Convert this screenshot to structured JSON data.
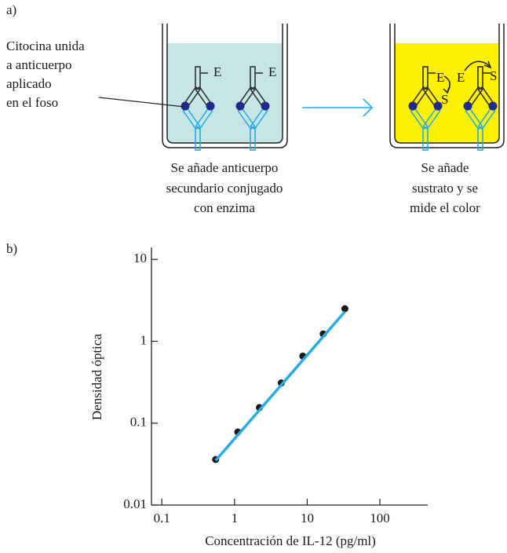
{
  "panel_labels": [
    "a)",
    "b)"
  ],
  "panel_a": {
    "callout": [
      "Citocina unida",
      "a anticuerpo",
      "aplicado",
      "en el foso"
    ],
    "enzyme": "E",
    "substrate": "S",
    "caption_left": [
      "Se añade anticuerpo",
      "secundario conjugado",
      "con enzima"
    ],
    "caption_right": [
      "Se añade",
      "sustrato y se",
      "mide el color"
    ]
  },
  "chart_data": {
    "type": "scatter",
    "x_label": "Concentración de IL-12 (pg/ml)",
    "y_label": "Densidad óptica",
    "xscale": "log",
    "yscale": "log",
    "xlim": [
      0.072,
      455
    ],
    "ylim": [
      0.01,
      14
    ],
    "xticks": [
      0.1,
      1,
      10,
      100
    ],
    "yticks": [
      0.01,
      0.1,
      1,
      10
    ],
    "grid": false,
    "series": [
      {
        "mode": "markers",
        "color": "#1a1a1a",
        "x": [
          0.55,
          1.11,
          2.2,
          4.4,
          8.7,
          16.6,
          33
        ],
        "values": [
          0.036,
          0.078,
          0.155,
          0.31,
          0.66,
          1.23,
          2.5
        ]
      },
      {
        "mode": "line",
        "color": "#29abe2",
        "x": [
          0.55,
          33
        ],
        "values": [
          0.035,
          2.3
        ]
      }
    ]
  }
}
